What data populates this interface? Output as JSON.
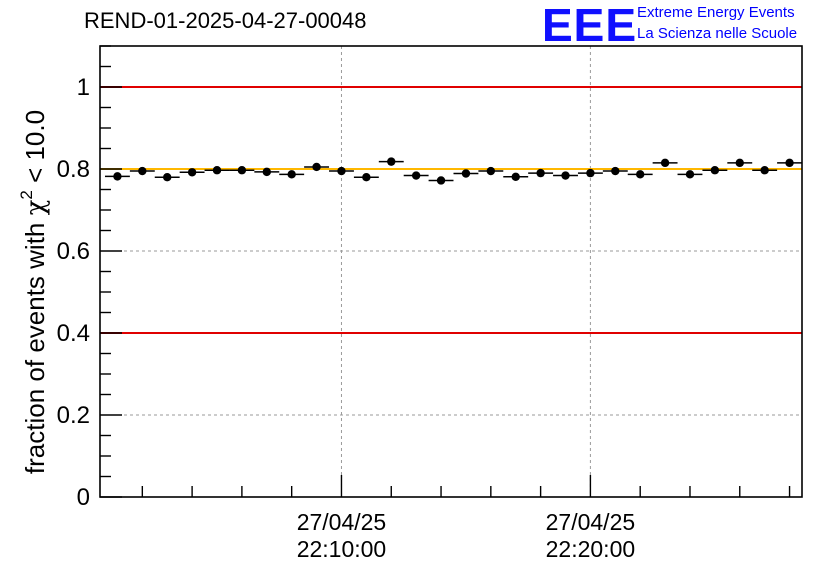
{
  "header": {
    "run_title": "REND-01-2025-04-27-00048"
  },
  "logo": {
    "mark": "EEE",
    "line1": "Extreme Energy Events",
    "line2": "La Scienza nelle Scuole"
  },
  "colors": {
    "threshold_line": "#e00000",
    "reference_line": "#ffb800",
    "marker": "#000000",
    "grid": "#9a9a9a",
    "logo": "#0000ff"
  },
  "chart_data": {
    "type": "scatter",
    "title": "REND-01-2025-04-27-00048",
    "xlabel": "",
    "ylabel_prefix": "fraction of events with ",
    "ylabel_symbol": "χ",
    "ylabel_superscript": "2",
    "ylabel_suffix": " < 10.0",
    "x_unit": "minutes since 22:00:00 on 27/04/25",
    "xlim": [
      0.3,
      28.5
    ],
    "ylim": [
      0,
      1.1
    ],
    "y_ticks": [
      0,
      0.2,
      0.4,
      0.6,
      0.8,
      1
    ],
    "y_tick_labels": [
      "0",
      "0.2",
      "0.4",
      "0.6",
      "0.8",
      "1"
    ],
    "x_major_ticks": [
      {
        "x": 10,
        "date": "27/04/25",
        "time": "22:10:00"
      },
      {
        "x": 20,
        "date": "27/04/25",
        "time": "22:20:00"
      }
    ],
    "x_minor_ticks": [
      2,
      4,
      6,
      8,
      12,
      14,
      16,
      18,
      22,
      24,
      26,
      28
    ],
    "grid": true,
    "bin_width": 1,
    "points": [
      {
        "x": 1,
        "y": 0.782
      },
      {
        "x": 2,
        "y": 0.795
      },
      {
        "x": 3,
        "y": 0.78
      },
      {
        "x": 4,
        "y": 0.792
      },
      {
        "x": 5,
        "y": 0.797
      },
      {
        "x": 6,
        "y": 0.797
      },
      {
        "x": 7,
        "y": 0.793
      },
      {
        "x": 8,
        "y": 0.787
      },
      {
        "x": 9,
        "y": 0.805
      },
      {
        "x": 10,
        "y": 0.795
      },
      {
        "x": 11,
        "y": 0.78
      },
      {
        "x": 12,
        "y": 0.818
      },
      {
        "x": 13,
        "y": 0.784
      },
      {
        "x": 14,
        "y": 0.772
      },
      {
        "x": 15,
        "y": 0.789
      },
      {
        "x": 16,
        "y": 0.795
      },
      {
        "x": 17,
        "y": 0.781
      },
      {
        "x": 18,
        "y": 0.79
      },
      {
        "x": 19,
        "y": 0.784
      },
      {
        "x": 20,
        "y": 0.79
      },
      {
        "x": 21,
        "y": 0.795
      },
      {
        "x": 22,
        "y": 0.787
      },
      {
        "x": 23,
        "y": 0.815
      },
      {
        "x": 24,
        "y": 0.787
      },
      {
        "x": 25,
        "y": 0.797
      },
      {
        "x": 26,
        "y": 0.815
      },
      {
        "x": 27,
        "y": 0.797
      },
      {
        "x": 28,
        "y": 0.815
      }
    ],
    "horizontal_lines": [
      {
        "name": "upper-threshold",
        "y": 1.0,
        "color": "#e00000"
      },
      {
        "name": "lower-threshold",
        "y": 0.4,
        "color": "#e00000"
      },
      {
        "name": "reference",
        "y": 0.8,
        "color": "#ffb800"
      }
    ]
  }
}
